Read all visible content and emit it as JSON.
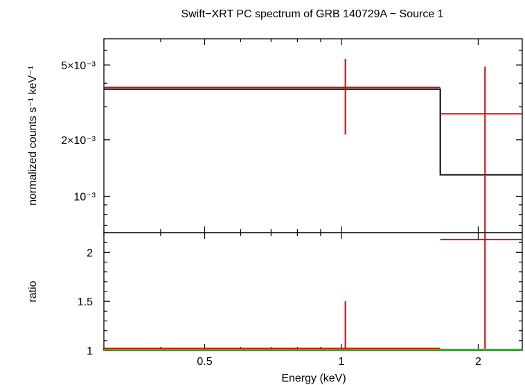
{
  "chart_data": [
    {
      "panel": "top",
      "type": "line",
      "title": "Swift−XRT PC spectrum of GRB 140729A − Source 1",
      "xlabel": "",
      "ylabel": "normalized counts s⁻¹ keV⁻¹",
      "xscale": "log",
      "yscale": "log",
      "xlim": [
        0.3,
        2.5
      ],
      "ylim": [
        0.00064,
        0.0069
      ],
      "ytick_labels": [
        "10⁻³",
        "2×10⁻³",
        "5×10⁻³"
      ],
      "ytick_values": [
        0.001,
        0.002,
        0.005
      ],
      "data_series": {
        "name": "",
        "color": "#e00000",
        "points": [
          {
            "xlo": 0.3,
            "xhi": 1.65,
            "x": 1.02,
            "y": 0.0038,
            "ylo": 0.00213,
            "yhi": 0.0054
          },
          {
            "xlo": 1.65,
            "xhi": 2.5,
            "x": 2.07,
            "y": 0.00275,
            "ylo": 0.00064,
            "yhi": 0.0049
          }
        ]
      },
      "model_series": {
        "name": "",
        "color": "#000000",
        "steps": [
          {
            "xlo": 0.3,
            "xhi": 1.65,
            "y": 0.00372
          },
          {
            "xlo": 1.65,
            "xhi": 2.5,
            "y": 0.0013
          }
        ]
      },
      "grid": false
    },
    {
      "panel": "bottom",
      "type": "line",
      "xlabel": "Energy (keV)",
      "ylabel": "ratio",
      "xscale": "log",
      "yscale": "linear",
      "xlim": [
        0.3,
        2.5
      ],
      "ylim": [
        1.0,
        2.2
      ],
      "xtick_labels": [
        "0.5",
        "1",
        "2"
      ],
      "xtick_values": [
        0.5,
        1,
        2
      ],
      "ytick_labels": [
        "1",
        "1.5",
        "2"
      ],
      "ytick_values": [
        1,
        1.5,
        2
      ],
      "data_series": {
        "name": "",
        "color": "#e00000",
        "points": [
          {
            "xlo": 0.3,
            "xhi": 1.65,
            "x": 1.02,
            "y": 1.02,
            "ylo": 1.0,
            "yhi": 1.5
          },
          {
            "xlo": 1.65,
            "xhi": 2.5,
            "x": 2.07,
            "y": 2.13,
            "ylo": 1.0,
            "yhi": 2.2
          }
        ]
      },
      "reference_line": {
        "y": 1.0,
        "color": "#00cc00"
      },
      "grid": false
    }
  ]
}
